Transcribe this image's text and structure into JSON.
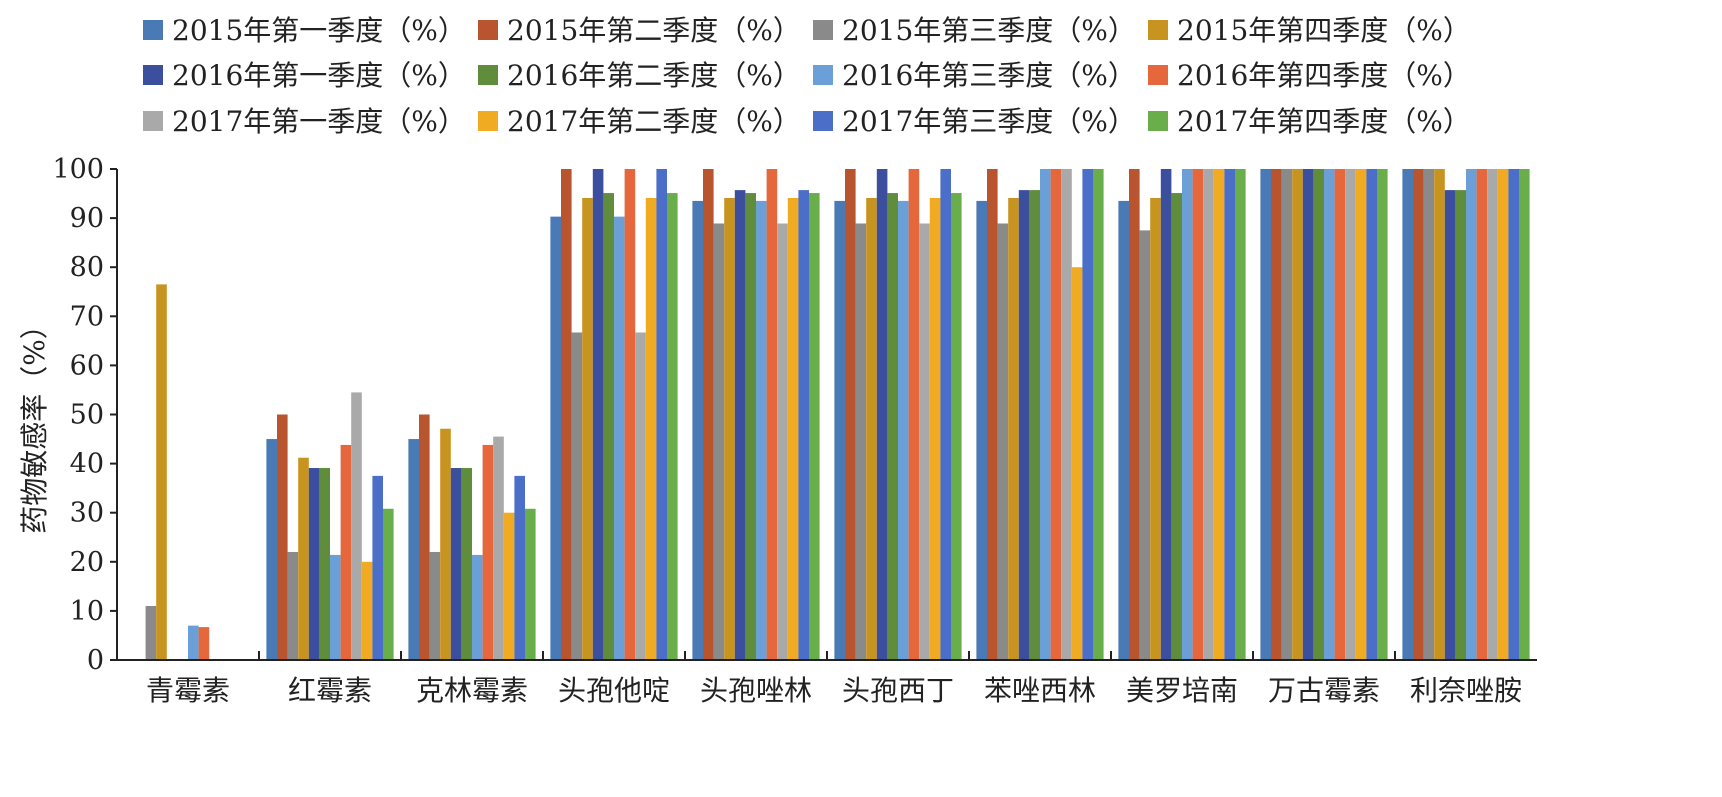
{
  "chart_data": {
    "type": "bar",
    "ylabel": "药物敏感率（%）",
    "ylim": [
      0,
      100
    ],
    "yticks": [
      0,
      10,
      20,
      30,
      40,
      50,
      60,
      70,
      80,
      90,
      100
    ],
    "grid": false,
    "legend_position": "top",
    "categories": [
      "青霉素",
      "红霉素",
      "克林霉素",
      "头孢他啶",
      "头孢唑林",
      "头孢西丁",
      "苯唑西林",
      "美罗培南",
      "万古霉素",
      "利奈唑胺"
    ],
    "series": [
      {
        "name": "2015年第一季度（%）",
        "color": "#4a7ab5",
        "values": [
          0,
          45,
          45,
          90.3,
          93.5,
          93.5,
          93.5,
          93.5,
          100,
          100
        ]
      },
      {
        "name": "2015年第二季度（%）",
        "color": "#b9552e",
        "values": [
          0,
          50,
          50,
          100,
          100,
          100,
          100,
          100,
          100,
          100
        ]
      },
      {
        "name": "2015年第三季度（%）",
        "color": "#8a8a8a",
        "values": [
          11,
          22,
          22,
          66.7,
          88.9,
          88.9,
          88.9,
          87.5,
          100,
          100
        ]
      },
      {
        "name": "2015年第四季度（%）",
        "color": "#c89420",
        "values": [
          76.5,
          41.2,
          47.1,
          94.1,
          94.1,
          94.1,
          94.1,
          94.1,
          100,
          100
        ]
      },
      {
        "name": "2016年第一季度（%）",
        "color": "#3b4f9e",
        "values": [
          0,
          39.1,
          39.1,
          100,
          95.7,
          100,
          95.7,
          100,
          100,
          95.7
        ]
      },
      {
        "name": "2016年第二季度（%）",
        "color": "#5f8d3b",
        "values": [
          0,
          39.1,
          39.1,
          95.1,
          95.1,
          95.1,
          95.7,
          95.1,
          100,
          95.7
        ]
      },
      {
        "name": "2016年第三季度（%）",
        "color": "#6a9fd8",
        "values": [
          7,
          21.4,
          21.4,
          90.3,
          93.5,
          93.5,
          100,
          100,
          100,
          100
        ]
      },
      {
        "name": "2016年第四季度（%）",
        "color": "#e5673b",
        "values": [
          6.7,
          43.8,
          43.8,
          100,
          100,
          100,
          100,
          100,
          100,
          100
        ]
      },
      {
        "name": "2017年第一季度（%）",
        "color": "#a9a9a9",
        "values": [
          0,
          54.5,
          45.5,
          66.7,
          88.9,
          88.9,
          100,
          100,
          100,
          100
        ]
      },
      {
        "name": "2017年第二季度（%）",
        "color": "#f0ab23",
        "values": [
          0,
          20,
          30,
          94.1,
          94.1,
          94.1,
          80,
          100,
          100,
          100
        ]
      },
      {
        "name": "2017年第三季度（%）",
        "color": "#4b6ec9",
        "values": [
          0,
          37.5,
          37.5,
          100,
          95.7,
          100,
          100,
          100,
          100,
          100
        ]
      },
      {
        "name": "2017年第四季度（%）",
        "color": "#6aad4b",
        "values": [
          0,
          30.8,
          30.8,
          95.1,
          95.1,
          95.1,
          100,
          100,
          100,
          100
        ]
      }
    ]
  }
}
